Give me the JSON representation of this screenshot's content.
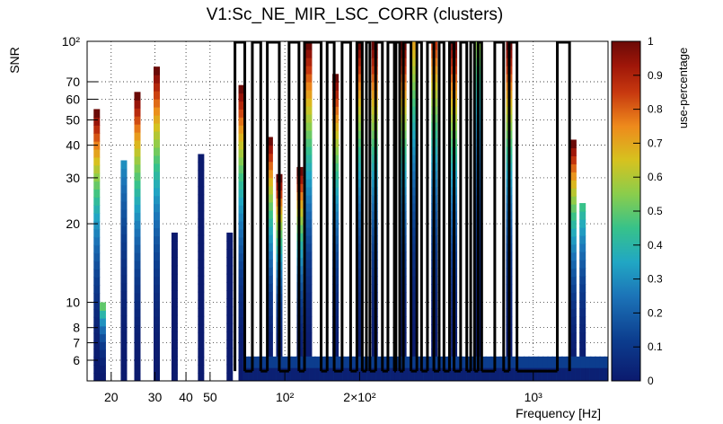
{
  "chart_data": {
    "type": "heatmap",
    "title": "V1:Sc_NE_MIR_LSC_CORR (clusters)",
    "xlabel": "Frequency [Hz]",
    "ylabel": "SNR",
    "zlabel": "use-percentage",
    "x_scale": "log",
    "y_scale": "log",
    "xlim": [
      16,
      2000
    ],
    "ylim": [
      5,
      100
    ],
    "zlim": [
      0,
      1
    ],
    "x_ticks": [
      {
        "value": 20,
        "label": "20"
      },
      {
        "value": 30,
        "label": "30"
      },
      {
        "value": 40,
        "label": "40"
      },
      {
        "value": 50,
        "label": "50"
      },
      {
        "value": 100,
        "label": "10²"
      },
      {
        "value": 200,
        "label": "2×10²"
      },
      {
        "value": 1000,
        "label": "10³"
      }
    ],
    "y_ticks": [
      {
        "value": 6,
        "label": "6"
      },
      {
        "value": 7,
        "label": "7"
      },
      {
        "value": 8,
        "label": "8"
      },
      {
        "value": 10,
        "label": "10"
      },
      {
        "value": 20,
        "label": "20"
      },
      {
        "value": 30,
        "label": "30"
      },
      {
        "value": 40,
        "label": "40"
      },
      {
        "value": 50,
        "label": "50"
      },
      {
        "value": 60,
        "label": "60"
      },
      {
        "value": 70,
        "label": "70"
      },
      {
        "value": 100,
        "label": "10²"
      }
    ],
    "z_ticks": [
      "0",
      "0.1",
      "0.2",
      "0.3",
      "0.4",
      "0.5",
      "0.6",
      "0.7",
      "0.8",
      "0.9",
      "1"
    ],
    "columns": [
      {
        "f": 17.5,
        "snr_max": 55,
        "top_use": 1.0
      },
      {
        "f": 18.5,
        "snr_max": 10,
        "top_use": 0.5
      },
      {
        "f": 22.5,
        "snr_max": 35,
        "top_use": 0.3
      },
      {
        "f": 25.5,
        "snr_max": 64,
        "top_use": 1.0
      },
      {
        "f": 30.5,
        "snr_max": 80,
        "top_use": 1.0
      },
      {
        "f": 36.0,
        "snr_max": 18.5,
        "top_use": 0.0
      },
      {
        "f": 46.0,
        "snr_max": 37,
        "top_use": 0.0
      },
      {
        "f": 60.0,
        "snr_max": 18.5,
        "top_use": 0.0
      },
      {
        "f": 67.0,
        "snr_max": 68,
        "top_use": 1.0
      },
      {
        "f": 87.0,
        "snr_max": 43,
        "top_use": 1.0
      },
      {
        "f": 95.0,
        "snr_max": 31,
        "top_use": 1.0
      },
      {
        "f": 115.0,
        "snr_max": 33,
        "top_use": 1.0
      },
      {
        "f": 125.0,
        "snr_max": 100,
        "top_use": 1.0
      },
      {
        "f": 160.0,
        "snr_max": 75,
        "top_use": 1.0
      },
      {
        "f": 200.0,
        "snr_max": 100,
        "top_use": 1.0
      },
      {
        "f": 230.0,
        "snr_max": 100,
        "top_use": 1.0
      },
      {
        "f": 300.0,
        "snr_max": 100,
        "top_use": 1.0
      },
      {
        "f": 330.0,
        "snr_max": 100,
        "top_use": 0.7
      },
      {
        "f": 400.0,
        "snr_max": 100,
        "top_use": 0.85
      },
      {
        "f": 480.0,
        "snr_max": 100,
        "top_use": 1.0
      },
      {
        "f": 600.0,
        "snr_max": 100,
        "top_use": 0.55
      },
      {
        "f": 800.0,
        "snr_max": 100,
        "top_use": 1.0
      },
      {
        "f": 1450.0,
        "snr_max": 42,
        "top_use": 1.0
      },
      {
        "f": 1580.0,
        "snr_max": 24,
        "top_use": 0.45
      }
    ],
    "outlined_bands_hz": [
      [
        63,
        69
      ],
      [
        74,
        80
      ],
      [
        85,
        95
      ],
      [
        104,
        114
      ],
      [
        120,
        140
      ],
      [
        148,
        158
      ],
      [
        170,
        184
      ],
      [
        195,
        205
      ],
      [
        213,
        220
      ],
      [
        232,
        247
      ],
      [
        260,
        276
      ],
      [
        280,
        290
      ],
      [
        300,
        322
      ],
      [
        340,
        355
      ],
      [
        375,
        398
      ],
      [
        418,
        437
      ],
      [
        460,
        480
      ],
      [
        510,
        540
      ],
      [
        560,
        580
      ],
      [
        600,
        620
      ],
      [
        700,
        760
      ],
      [
        800,
        860
      ],
      [
        1250,
        1400
      ]
    ]
  }
}
